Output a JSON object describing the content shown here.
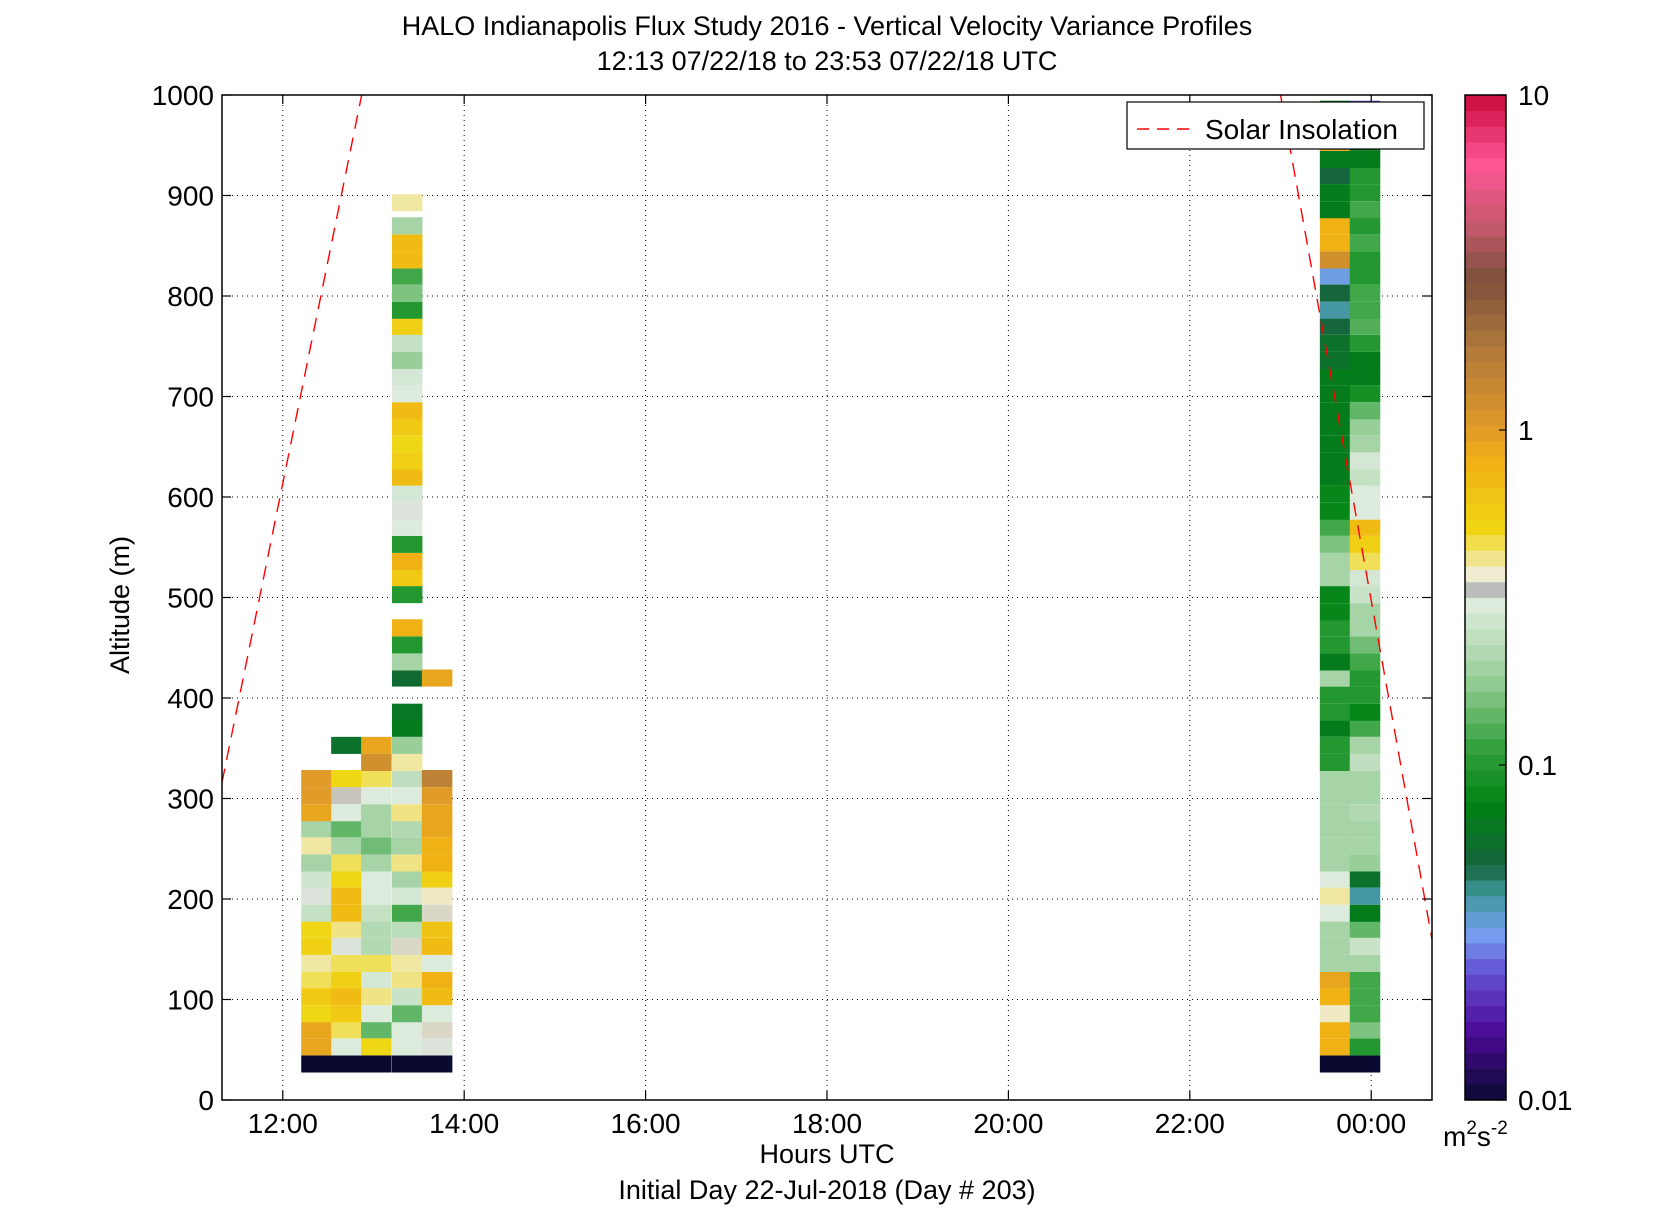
{
  "chart_data": {
    "type": "heatmap",
    "title": "HALO Indianapolis Flux Study 2016 - Vertical Velocity Variance Profiles",
    "subtitle": "12:13 07/22/18 to 23:53 07/22/18  UTC",
    "xlabel": "Hours UTC",
    "xlabel2": "Initial Day 22-Jul-2018 (Day # 203)",
    "ylabel": "Altitude (m)",
    "xlim": [
      11.33,
      24.67
    ],
    "ylim": [
      0,
      1000
    ],
    "x_ticks": [
      12,
      14,
      16,
      18,
      20,
      22,
      24
    ],
    "x_tick_labels": [
      "12:00",
      "14:00",
      "16:00",
      "18:00",
      "20:00",
      "22:00",
      "00:00"
    ],
    "y_ticks": [
      0,
      100,
      200,
      300,
      400,
      500,
      600,
      700,
      800,
      900,
      1000
    ],
    "y_tick_labels": [
      "0",
      "100",
      "200",
      "300",
      "400",
      "500",
      "600",
      "700",
      "800",
      "900",
      "1000"
    ],
    "grid": true,
    "colorbar": {
      "scale": "log",
      "range": [
        0.01,
        10
      ],
      "ticks": [
        0.01,
        0.1,
        1,
        10
      ],
      "tick_labels": [
        "0.01",
        "0.1",
        "1",
        "10"
      ],
      "unit_base": "m",
      "unit_sup1": "2",
      "unit_mid": "s",
      "unit_sup2": "-2"
    },
    "legend": {
      "position": "top-right",
      "entries": [
        {
          "name": "Solar Insolation",
          "style": "dashed",
          "color": "#ff0000"
        }
      ]
    },
    "solar_insolation": {
      "segments": [
        {
          "x": [
            11.33,
            12.87
          ],
          "y": [
            316,
            1000
          ]
        },
        {
          "x": [
            23.0,
            24.67
          ],
          "y": [
            1000,
            160
          ]
        }
      ]
    },
    "bin_height": 16.67,
    "profiles": [
      {
        "time": 12.37,
        "bins": [
          [
            36,
            0.01
          ],
          [
            53,
            0.9
          ],
          [
            70,
            0.9
          ],
          [
            86,
            0.5
          ],
          [
            103,
            0.6
          ],
          [
            120,
            0.45
          ],
          [
            136,
            0.4
          ],
          [
            153,
            0.55
          ],
          [
            170,
            0.5
          ],
          [
            186,
            0.25
          ],
          [
            203,
            0.32
          ],
          [
            220,
            0.27
          ],
          [
            236,
            0.2
          ],
          [
            253,
            0.4
          ],
          [
            270,
            0.2
          ],
          [
            286,
            0.9
          ],
          [
            303,
            1.0
          ],
          [
            320,
            1.0
          ]
        ]
      },
      {
        "time": 12.7,
        "bins": [
          [
            36,
            0.01
          ],
          [
            53,
            0.3
          ],
          [
            70,
            0.45
          ],
          [
            86,
            0.6
          ],
          [
            103,
            0.7
          ],
          [
            120,
            0.55
          ],
          [
            136,
            0.45
          ],
          [
            153,
            0.32
          ],
          [
            170,
            0.42
          ],
          [
            186,
            0.7
          ],
          [
            203,
            0.7
          ],
          [
            220,
            0.5
          ],
          [
            236,
            0.45
          ],
          [
            253,
            0.2
          ],
          [
            270,
            0.14
          ],
          [
            286,
            0.3
          ],
          [
            303,
            0.35
          ],
          [
            320,
            0.5
          ],
          [
            353,
            0.06
          ]
        ]
      },
      {
        "time": 13.03,
        "bins": [
          [
            36,
            0.01
          ],
          [
            53,
            0.5
          ],
          [
            70,
            0.14
          ],
          [
            86,
            0.3
          ],
          [
            103,
            0.42
          ],
          [
            120,
            0.28
          ],
          [
            136,
            0.45
          ],
          [
            153,
            0.22
          ],
          [
            170,
            0.22
          ],
          [
            186,
            0.25
          ],
          [
            203,
            0.3
          ],
          [
            220,
            0.3
          ],
          [
            236,
            0.2
          ],
          [
            253,
            0.15
          ],
          [
            270,
            0.2
          ],
          [
            286,
            0.2
          ],
          [
            303,
            0.3
          ],
          [
            320,
            0.45
          ],
          [
            336,
            1.2
          ],
          [
            353,
            0.9
          ]
        ]
      },
      {
        "time": 13.37,
        "bins": [
          [
            36,
            0.01
          ],
          [
            53,
            0.3
          ],
          [
            70,
            0.3
          ],
          [
            86,
            0.14
          ],
          [
            103,
            0.26
          ],
          [
            120,
            0.42
          ],
          [
            136,
            0.4
          ],
          [
            153,
            0.36
          ],
          [
            170,
            0.23
          ],
          [
            186,
            0.12
          ],
          [
            203,
            0.28
          ],
          [
            220,
            0.2
          ],
          [
            236,
            0.42
          ],
          [
            253,
            0.2
          ],
          [
            270,
            0.22
          ],
          [
            286,
            0.42
          ],
          [
            303,
            0.3
          ],
          [
            320,
            0.24
          ],
          [
            336,
            0.4
          ],
          [
            353,
            0.18
          ],
          [
            370,
            0.07
          ],
          [
            386,
            0.065
          ],
          [
            420,
            0.055
          ],
          [
            436,
            0.2
          ],
          [
            453,
            0.1
          ],
          [
            470,
            0.8
          ],
          [
            503,
            0.1
          ],
          [
            520,
            0.6
          ],
          [
            536,
            0.8
          ],
          [
            553,
            0.1
          ],
          [
            570,
            0.3
          ],
          [
            586,
            0.32
          ],
          [
            603,
            0.28
          ],
          [
            620,
            0.7
          ],
          [
            636,
            0.55
          ],
          [
            653,
            0.5
          ],
          [
            670,
            0.6
          ],
          [
            686,
            0.7
          ],
          [
            703,
            0.3
          ],
          [
            720,
            0.28
          ],
          [
            736,
            0.18
          ],
          [
            753,
            0.25
          ],
          [
            770,
            0.55
          ],
          [
            786,
            0.1
          ],
          [
            803,
            0.16
          ],
          [
            820,
            0.12
          ],
          [
            836,
            0.7
          ],
          [
            853,
            0.7
          ],
          [
            870,
            0.2
          ],
          [
            893,
            0.4
          ]
        ]
      },
      {
        "time": 13.7,
        "bins": [
          [
            36,
            0.01
          ],
          [
            53,
            0.32
          ],
          [
            70,
            0.36
          ],
          [
            86,
            0.3
          ],
          [
            103,
            0.7
          ],
          [
            120,
            0.8
          ],
          [
            136,
            0.3
          ],
          [
            153,
            0.7
          ],
          [
            170,
            0.65
          ],
          [
            186,
            0.36
          ],
          [
            203,
            0.38
          ],
          [
            220,
            0.55
          ],
          [
            236,
            0.8
          ],
          [
            253,
            0.8
          ],
          [
            270,
            0.9
          ],
          [
            286,
            0.9
          ],
          [
            303,
            1.0
          ],
          [
            320,
            1.5
          ],
          [
            420,
            0.9
          ]
        ]
      },
      {
        "time": 23.6,
        "bins": [
          [
            36,
            0.01
          ],
          [
            53,
            0.8
          ],
          [
            70,
            0.8
          ],
          [
            86,
            0.38
          ],
          [
            103,
            0.8
          ],
          [
            120,
            0.9
          ],
          [
            136,
            0.2
          ],
          [
            153,
            0.2
          ],
          [
            170,
            0.2
          ],
          [
            186,
            0.3
          ],
          [
            203,
            0.4
          ],
          [
            220,
            0.3
          ],
          [
            236,
            0.2
          ],
          [
            253,
            0.2
          ],
          [
            270,
            0.2
          ],
          [
            286,
            0.2
          ],
          [
            303,
            0.2
          ],
          [
            320,
            0.2
          ],
          [
            336,
            0.1
          ],
          [
            353,
            0.1
          ],
          [
            370,
            0.07
          ],
          [
            386,
            0.1
          ],
          [
            403,
            0.1
          ],
          [
            420,
            0.2
          ],
          [
            436,
            0.07
          ],
          [
            453,
            0.1
          ],
          [
            470,
            0.1
          ],
          [
            486,
            0.08
          ],
          [
            503,
            0.08
          ],
          [
            520,
            0.2
          ],
          [
            536,
            0.2
          ],
          [
            553,
            0.16
          ],
          [
            570,
            0.12
          ],
          [
            586,
            0.08
          ],
          [
            603,
            0.08
          ],
          [
            620,
            0.07
          ],
          [
            636,
            0.07
          ],
          [
            653,
            0.07
          ],
          [
            670,
            0.07
          ],
          [
            686,
            0.07
          ],
          [
            703,
            0.07
          ],
          [
            720,
            0.07
          ],
          [
            736,
            0.06
          ],
          [
            753,
            0.06
          ],
          [
            770,
            0.05
          ],
          [
            786,
            0.04
          ],
          [
            803,
            0.05
          ],
          [
            820,
            0.033
          ],
          [
            836,
            1.2
          ],
          [
            853,
            0.8
          ],
          [
            870,
            0.8
          ],
          [
            886,
            0.07
          ],
          [
            903,
            0.07
          ],
          [
            920,
            0.05
          ],
          [
            936,
            0.07
          ],
          [
            953,
            0.9
          ],
          [
            970,
            0.9
          ],
          [
            986,
            0.07
          ]
        ]
      },
      {
        "time": 23.93,
        "bins": [
          [
            36,
            0.01
          ],
          [
            53,
            0.1
          ],
          [
            70,
            0.16
          ],
          [
            86,
            0.12
          ],
          [
            103,
            0.12
          ],
          [
            120,
            0.12
          ],
          [
            136,
            0.2
          ],
          [
            153,
            0.26
          ],
          [
            170,
            0.14
          ],
          [
            186,
            0.07
          ],
          [
            203,
            0.04
          ],
          [
            220,
            0.06
          ],
          [
            236,
            0.18
          ],
          [
            253,
            0.2
          ],
          [
            270,
            0.2
          ],
          [
            286,
            0.22
          ],
          [
            303,
            0.2
          ],
          [
            320,
            0.2
          ],
          [
            336,
            0.24
          ],
          [
            353,
            0.2
          ],
          [
            370,
            0.12
          ],
          [
            386,
            0.08
          ],
          [
            403,
            0.1
          ],
          [
            420,
            0.1
          ],
          [
            436,
            0.12
          ],
          [
            453,
            0.15
          ],
          [
            470,
            0.2
          ],
          [
            486,
            0.2
          ],
          [
            503,
            0.26
          ],
          [
            520,
            0.28
          ],
          [
            536,
            0.45
          ],
          [
            553,
            0.55
          ],
          [
            570,
            0.7
          ],
          [
            586,
            0.3
          ],
          [
            603,
            0.3
          ],
          [
            620,
            0.25
          ],
          [
            636,
            0.28
          ],
          [
            653,
            0.2
          ],
          [
            670,
            0.18
          ],
          [
            686,
            0.14
          ],
          [
            703,
            0.09
          ],
          [
            720,
            0.07
          ],
          [
            736,
            0.07
          ],
          [
            753,
            0.1
          ],
          [
            770,
            0.13
          ],
          [
            786,
            0.12
          ],
          [
            803,
            0.12
          ],
          [
            820,
            0.1
          ],
          [
            836,
            0.1
          ],
          [
            853,
            0.12
          ],
          [
            870,
            0.1
          ],
          [
            886,
            0.12
          ],
          [
            903,
            0.1
          ],
          [
            920,
            0.1
          ],
          [
            936,
            0.07
          ],
          [
            953,
            0.07
          ],
          [
            970,
            0.12
          ],
          [
            986,
            0.025
          ]
        ]
      }
    ]
  }
}
